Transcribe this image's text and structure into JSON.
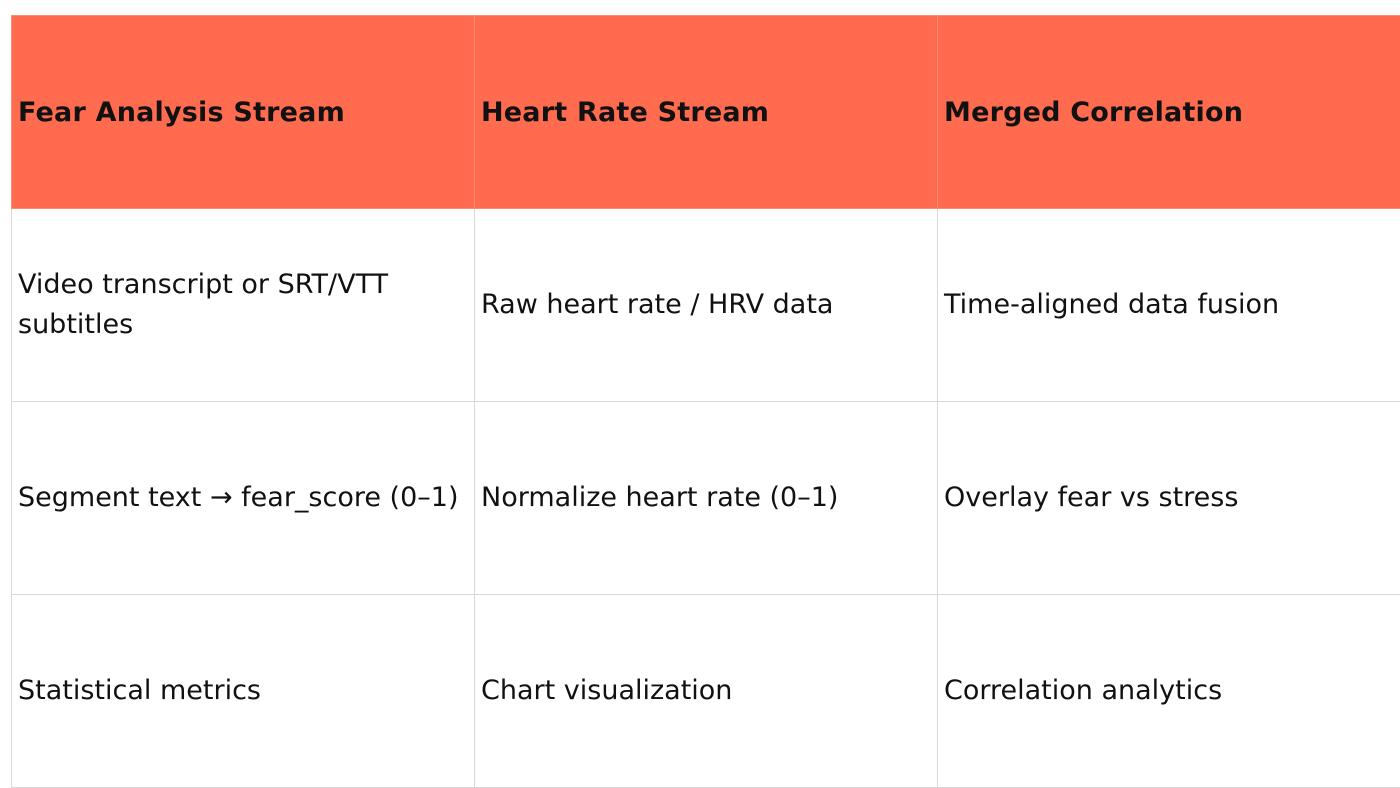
{
  "table": {
    "headers": [
      "Fear Analysis Stream",
      "Heart Rate Stream",
      "Merged Correlation"
    ],
    "rows": [
      [
        "Video transcript or SRT/VTT subtitles",
        "Raw heart rate / HRV data",
        "Time-aligned data fusion"
      ],
      [
        "Segment text → fear_score (0–1)",
        "Normalize heart rate (0–1)",
        "Overlay fear vs stress"
      ],
      [
        "Statistical metrics",
        "Chart visualization",
        "Correlation analytics"
      ]
    ]
  },
  "colors": {
    "header_background": "#ff6b4e",
    "grid_line": "#d9d9d9",
    "text": "#111111"
  }
}
